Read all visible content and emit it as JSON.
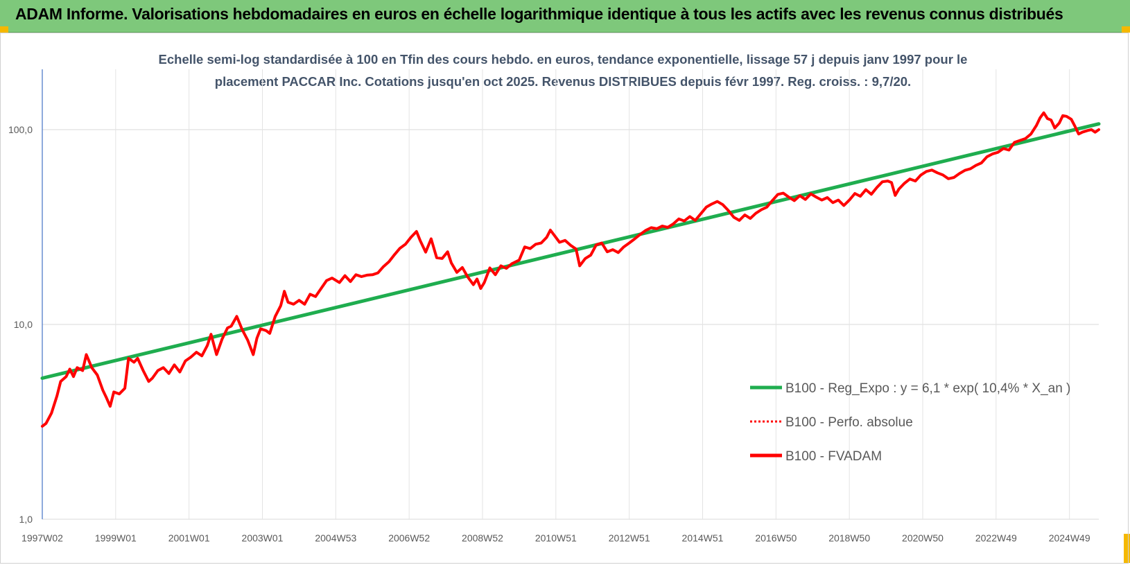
{
  "banner": {
    "title": "ADAM Informe. Valorisations hebdomadaires en euros en échelle logarithmique identique à tous les actifs avec les revenus connus distribués",
    "color": "#7ec87b"
  },
  "chart_data": {
    "type": "line",
    "title_lines": [
      "Echelle semi-log standardisée à 100 en Tfin des cours hebdo. en euros, tendance exponentielle, lissage 57 j depuis janv 1997 pour le",
      "placement PACCAR Inc. Cotations jusqu'en oct 2025. Revenus DISTRIBUES depuis févr 1997. Reg. croiss. : 9,7/20."
    ],
    "y_scale": "log",
    "ylim": [
      1,
      200
    ],
    "y_ticks": [
      {
        "value": 1,
        "label": "1,0"
      },
      {
        "value": 10,
        "label": "10,0"
      },
      {
        "value": 100,
        "label": "100,0"
      }
    ],
    "x_range": [
      1997.0,
      2025.8
    ],
    "x_ticks": [
      {
        "label": "1997W02",
        "x": 1997.0
      },
      {
        "label": "1999W01",
        "x": 1999.0
      },
      {
        "label": "2001W01",
        "x": 2001.0
      },
      {
        "label": "2003W01",
        "x": 2003.0
      },
      {
        "label": "2004W53",
        "x": 2005.0
      },
      {
        "label": "2006W52",
        "x": 2007.0
      },
      {
        "label": "2008W52",
        "x": 2009.0
      },
      {
        "label": "2010W51",
        "x": 2011.0
      },
      {
        "label": "2012W51",
        "x": 2013.0
      },
      {
        "label": "2014W51",
        "x": 2015.0
      },
      {
        "label": "2016W50",
        "x": 2017.0
      },
      {
        "label": "2018W50",
        "x": 2019.0
      },
      {
        "label": "2020W50",
        "x": 2021.0
      },
      {
        "label": "2022W49",
        "x": 2023.0
      },
      {
        "label": "2024W49",
        "x": 2025.0
      }
    ],
    "grid": "horizontal and vertical",
    "legend_position": "bottom-right",
    "series": [
      {
        "name": "B100 - Reg_Expo : y = 6,1 * exp( 10,4% *  X_an )",
        "color": "#1fad4f",
        "style": "solid",
        "points": [
          [
            1997.0,
            5.3
          ],
          [
            2025.8,
            107
          ]
        ]
      },
      {
        "name": "B100 - Perfo. absolue",
        "color": "#ff0000",
        "style": "dotted",
        "points": []
      },
      {
        "name": "B100 - FVADAM",
        "color": "#ff0000",
        "style": "solid",
        "points": [
          [
            1997.0,
            3.0
          ],
          [
            1997.1,
            3.1
          ],
          [
            1997.25,
            3.5
          ],
          [
            1997.4,
            4.3
          ],
          [
            1997.5,
            5.1
          ],
          [
            1997.65,
            5.4
          ],
          [
            1997.75,
            5.9
          ],
          [
            1997.85,
            5.4
          ],
          [
            1997.95,
            6.0
          ],
          [
            1998.1,
            5.8
          ],
          [
            1998.2,
            7.0
          ],
          [
            1998.35,
            6.0
          ],
          [
            1998.5,
            5.5
          ],
          [
            1998.65,
            4.6
          ],
          [
            1998.75,
            4.2
          ],
          [
            1998.85,
            3.8
          ],
          [
            1998.95,
            4.5
          ],
          [
            1999.1,
            4.4
          ],
          [
            1999.25,
            4.7
          ],
          [
            1999.35,
            6.7
          ],
          [
            1999.5,
            6.4
          ],
          [
            1999.6,
            6.7
          ],
          [
            1999.75,
            5.8
          ],
          [
            1999.9,
            5.1
          ],
          [
            2000.0,
            5.3
          ],
          [
            2000.15,
            5.8
          ],
          [
            2000.3,
            6.0
          ],
          [
            2000.45,
            5.6
          ],
          [
            2000.6,
            6.2
          ],
          [
            2000.75,
            5.7
          ],
          [
            2000.9,
            6.5
          ],
          [
            2001.05,
            6.8
          ],
          [
            2001.2,
            7.2
          ],
          [
            2001.35,
            6.9
          ],
          [
            2001.5,
            7.8
          ],
          [
            2001.6,
            8.9
          ],
          [
            2001.75,
            7.0
          ],
          [
            2001.9,
            8.4
          ],
          [
            2002.05,
            9.6
          ],
          [
            2002.15,
            9.8
          ],
          [
            2002.3,
            11.0
          ],
          [
            2002.45,
            9.4
          ],
          [
            2002.6,
            8.3
          ],
          [
            2002.75,
            7.0
          ],
          [
            2002.85,
            8.5
          ],
          [
            2002.95,
            9.5
          ],
          [
            2003.1,
            9.3
          ],
          [
            2003.2,
            9.0
          ],
          [
            2003.35,
            11.0
          ],
          [
            2003.5,
            12.5
          ],
          [
            2003.6,
            14.8
          ],
          [
            2003.7,
            13.0
          ],
          [
            2003.85,
            12.7
          ],
          [
            2004.0,
            13.3
          ],
          [
            2004.15,
            12.7
          ],
          [
            2004.3,
            14.3
          ],
          [
            2004.45,
            13.9
          ],
          [
            2004.6,
            15.3
          ],
          [
            2004.75,
            16.8
          ],
          [
            2004.9,
            17.3
          ],
          [
            2005.1,
            16.4
          ],
          [
            2005.25,
            17.8
          ],
          [
            2005.4,
            16.6
          ],
          [
            2005.55,
            18.0
          ],
          [
            2005.7,
            17.6
          ],
          [
            2005.85,
            17.9
          ],
          [
            2006.0,
            18.0
          ],
          [
            2006.15,
            18.4
          ],
          [
            2006.3,
            19.8
          ],
          [
            2006.45,
            21.0
          ],
          [
            2006.6,
            22.8
          ],
          [
            2006.75,
            24.6
          ],
          [
            2006.9,
            25.8
          ],
          [
            2007.05,
            28.0
          ],
          [
            2007.2,
            30.0
          ],
          [
            2007.3,
            27.0
          ],
          [
            2007.45,
            23.5
          ],
          [
            2007.6,
            27.5
          ],
          [
            2007.75,
            22.0
          ],
          [
            2007.9,
            21.8
          ],
          [
            2008.05,
            23.6
          ],
          [
            2008.15,
            20.7
          ],
          [
            2008.3,
            18.5
          ],
          [
            2008.45,
            19.6
          ],
          [
            2008.6,
            17.5
          ],
          [
            2008.75,
            16.0
          ],
          [
            2008.85,
            17.1
          ],
          [
            2008.95,
            15.3
          ],
          [
            2009.05,
            16.4
          ],
          [
            2009.2,
            19.5
          ],
          [
            2009.35,
            18.0
          ],
          [
            2009.5,
            20.0
          ],
          [
            2009.65,
            19.4
          ],
          [
            2009.8,
            20.5
          ],
          [
            2010.0,
            21.4
          ],
          [
            2010.15,
            25.0
          ],
          [
            2010.3,
            24.5
          ],
          [
            2010.45,
            25.8
          ],
          [
            2010.6,
            26.2
          ],
          [
            2010.75,
            28.0
          ],
          [
            2010.85,
            30.5
          ],
          [
            2010.95,
            28.8
          ],
          [
            2011.1,
            26.4
          ],
          [
            2011.25,
            27.0
          ],
          [
            2011.4,
            25.5
          ],
          [
            2011.55,
            24.4
          ],
          [
            2011.65,
            20.0
          ],
          [
            2011.8,
            21.8
          ],
          [
            2011.95,
            22.7
          ],
          [
            2012.1,
            25.6
          ],
          [
            2012.25,
            26.2
          ],
          [
            2012.4,
            23.6
          ],
          [
            2012.55,
            24.2
          ],
          [
            2012.7,
            23.4
          ],
          [
            2012.85,
            25.0
          ],
          [
            2013.0,
            26.2
          ],
          [
            2013.15,
            27.5
          ],
          [
            2013.3,
            29.0
          ],
          [
            2013.45,
            30.4
          ],
          [
            2013.6,
            31.4
          ],
          [
            2013.75,
            31.0
          ],
          [
            2013.9,
            32.0
          ],
          [
            2014.05,
            31.5
          ],
          [
            2014.2,
            32.8
          ],
          [
            2014.35,
            34.8
          ],
          [
            2014.5,
            34.0
          ],
          [
            2014.65,
            35.8
          ],
          [
            2014.8,
            34.2
          ],
          [
            2014.95,
            37.0
          ],
          [
            2015.1,
            40.0
          ],
          [
            2015.25,
            41.5
          ],
          [
            2015.4,
            42.8
          ],
          [
            2015.55,
            41.2
          ],
          [
            2015.7,
            38.5
          ],
          [
            2015.85,
            35.5
          ],
          [
            2016.0,
            34.2
          ],
          [
            2016.15,
            36.5
          ],
          [
            2016.3,
            35.0
          ],
          [
            2016.45,
            37.2
          ],
          [
            2016.6,
            38.8
          ],
          [
            2016.75,
            40.0
          ],
          [
            2016.9,
            43.2
          ],
          [
            2017.05,
            46.5
          ],
          [
            2017.2,
            47.2
          ],
          [
            2017.35,
            45.0
          ],
          [
            2017.5,
            43.2
          ],
          [
            2017.65,
            45.8
          ],
          [
            2017.8,
            43.8
          ],
          [
            2017.95,
            46.8
          ],
          [
            2018.1,
            45.0
          ],
          [
            2018.25,
            43.5
          ],
          [
            2018.4,
            44.8
          ],
          [
            2018.55,
            42.2
          ],
          [
            2018.7,
            43.5
          ],
          [
            2018.85,
            40.8
          ],
          [
            2019.0,
            43.5
          ],
          [
            2019.15,
            47.0
          ],
          [
            2019.3,
            45.5
          ],
          [
            2019.45,
            49.2
          ],
          [
            2019.6,
            46.6
          ],
          [
            2019.75,
            50.5
          ],
          [
            2019.9,
            54.0
          ],
          [
            2020.05,
            54.5
          ],
          [
            2020.15,
            53.5
          ],
          [
            2020.25,
            46.0
          ],
          [
            2020.35,
            49.5
          ],
          [
            2020.5,
            53.0
          ],
          [
            2020.65,
            55.8
          ],
          [
            2020.8,
            54.5
          ],
          [
            2020.95,
            58.5
          ],
          [
            2021.1,
            61.0
          ],
          [
            2021.25,
            62.0
          ],
          [
            2021.4,
            60.0
          ],
          [
            2021.55,
            58.5
          ],
          [
            2021.7,
            56.0
          ],
          [
            2021.85,
            56.8
          ],
          [
            2022.0,
            59.5
          ],
          [
            2022.15,
            61.8
          ],
          [
            2022.3,
            63.0
          ],
          [
            2022.45,
            65.5
          ],
          [
            2022.6,
            67.5
          ],
          [
            2022.75,
            72.5
          ],
          [
            2022.9,
            75.0
          ],
          [
            2023.05,
            76.5
          ],
          [
            2023.2,
            80.0
          ],
          [
            2023.35,
            78.5
          ],
          [
            2023.5,
            86.0
          ],
          [
            2023.65,
            88.0
          ],
          [
            2023.8,
            90.0
          ],
          [
            2023.95,
            95.0
          ],
          [
            2024.1,
            105.0
          ],
          [
            2024.2,
            115.0
          ],
          [
            2024.3,
            122.0
          ],
          [
            2024.4,
            114.0
          ],
          [
            2024.5,
            112.0
          ],
          [
            2024.6,
            102.0
          ],
          [
            2024.72,
            108.0
          ],
          [
            2024.82,
            118.0
          ],
          [
            2024.92,
            117.0
          ],
          [
            2025.05,
            113.0
          ],
          [
            2025.15,
            104.0
          ],
          [
            2025.25,
            95.0
          ],
          [
            2025.35,
            97.0
          ],
          [
            2025.5,
            99.0
          ],
          [
            2025.6,
            100.0
          ],
          [
            2025.7,
            97.0
          ],
          [
            2025.8,
            100.0
          ]
        ]
      }
    ]
  }
}
